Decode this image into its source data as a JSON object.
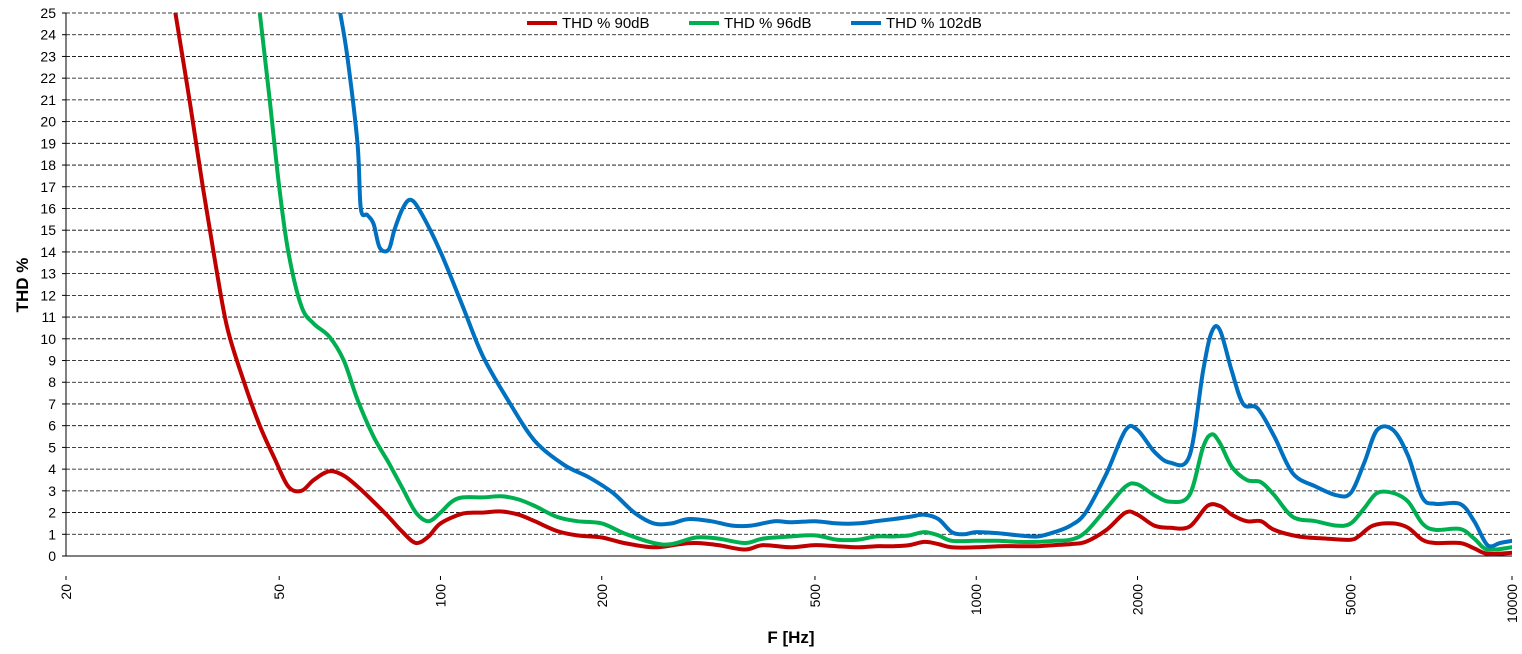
{
  "chart_data": {
    "type": "line",
    "title": "",
    "xlabel": "F [Hz]",
    "ylabel": "THD %",
    "x_scale": "log",
    "xlim": [
      20,
      10000
    ],
    "ylim": [
      0,
      25
    ],
    "x_ticks": [
      20,
      50,
      100,
      200,
      500,
      1000,
      2000,
      5000,
      10000
    ],
    "x_tick_labels": [
      "20",
      "50",
      "100",
      "200",
      "500",
      "1000",
      "2000",
      "5000",
      "10000"
    ],
    "y_ticks": [
      0,
      1,
      2,
      3,
      4,
      5,
      6,
      7,
      8,
      9,
      10,
      11,
      12,
      13,
      14,
      15,
      16,
      17,
      18,
      19,
      20,
      21,
      22,
      23,
      24,
      25
    ],
    "y_tick_labels": [
      "0",
      "1",
      "2",
      "3",
      "4",
      "5",
      "6",
      "7",
      "8",
      "9",
      "10",
      "11",
      "12",
      "13",
      "14",
      "15",
      "16",
      "17",
      "18",
      "19",
      "20",
      "21",
      "22",
      "23",
      "24",
      "25"
    ],
    "grid": "horizontal dashed",
    "legend_position": "top-center",
    "series": [
      {
        "name": "THD % 90dB",
        "color": "#c00000",
        "points": [
          [
            32,
            25
          ],
          [
            34,
            21
          ],
          [
            36,
            17
          ],
          [
            38,
            13.5
          ],
          [
            40,
            10.5
          ],
          [
            43,
            8
          ],
          [
            46,
            6
          ],
          [
            49,
            4.5
          ],
          [
            52,
            3.2
          ],
          [
            55,
            3.0
          ],
          [
            58,
            3.5
          ],
          [
            62,
            3.9
          ],
          [
            66,
            3.7
          ],
          [
            70,
            3.2
          ],
          [
            75,
            2.5
          ],
          [
            80,
            1.8
          ],
          [
            85,
            1.1
          ],
          [
            90,
            0.6
          ],
          [
            95,
            0.9
          ],
          [
            100,
            1.5
          ],
          [
            110,
            1.95
          ],
          [
            120,
            2.0
          ],
          [
            130,
            2.05
          ],
          [
            140,
            1.9
          ],
          [
            150,
            1.6
          ],
          [
            165,
            1.15
          ],
          [
            180,
            0.95
          ],
          [
            200,
            0.85
          ],
          [
            220,
            0.6
          ],
          [
            250,
            0.4
          ],
          [
            280,
            0.55
          ],
          [
            300,
            0.6
          ],
          [
            330,
            0.5
          ],
          [
            370,
            0.3
          ],
          [
            400,
            0.5
          ],
          [
            450,
            0.4
          ],
          [
            500,
            0.5
          ],
          [
            550,
            0.45
          ],
          [
            600,
            0.4
          ],
          [
            650,
            0.45
          ],
          [
            700,
            0.45
          ],
          [
            750,
            0.5
          ],
          [
            800,
            0.65
          ],
          [
            850,
            0.55
          ],
          [
            900,
            0.4
          ],
          [
            1000,
            0.4
          ],
          [
            1100,
            0.45
          ],
          [
            1200,
            0.45
          ],
          [
            1300,
            0.45
          ],
          [
            1400,
            0.5
          ],
          [
            1500,
            0.55
          ],
          [
            1600,
            0.65
          ],
          [
            1750,
            1.2
          ],
          [
            1900,
            2.0
          ],
          [
            2000,
            1.9
          ],
          [
            2150,
            1.4
          ],
          [
            2300,
            1.3
          ],
          [
            2500,
            1.35
          ],
          [
            2700,
            2.3
          ],
          [
            2850,
            2.3
          ],
          [
            3000,
            1.9
          ],
          [
            3200,
            1.6
          ],
          [
            3400,
            1.6
          ],
          [
            3600,
            1.2
          ],
          [
            4000,
            0.9
          ],
          [
            4500,
            0.8
          ],
          [
            5000,
            0.75
          ],
          [
            5200,
            0.95
          ],
          [
            5500,
            1.4
          ],
          [
            6000,
            1.5
          ],
          [
            6400,
            1.3
          ],
          [
            6800,
            0.75
          ],
          [
            7200,
            0.6
          ],
          [
            8000,
            0.6
          ],
          [
            8500,
            0.35
          ],
          [
            9000,
            0.1
          ],
          [
            10000,
            0.15
          ]
        ]
      },
      {
        "name": "THD % 96dB",
        "color": "#00b050",
        "points": [
          [
            46,
            25
          ],
          [
            48,
            21
          ],
          [
            50,
            17
          ],
          [
            52,
            14
          ],
          [
            55,
            11.5
          ],
          [
            58,
            10.7
          ],
          [
            62,
            10.1
          ],
          [
            66,
            9.0
          ],
          [
            70,
            7.2
          ],
          [
            75,
            5.5
          ],
          [
            80,
            4.3
          ],
          [
            85,
            3.1
          ],
          [
            90,
            2.0
          ],
          [
            95,
            1.6
          ],
          [
            100,
            2.0
          ],
          [
            105,
            2.5
          ],
          [
            110,
            2.7
          ],
          [
            120,
            2.7
          ],
          [
            130,
            2.75
          ],
          [
            140,
            2.6
          ],
          [
            150,
            2.3
          ],
          [
            165,
            1.8
          ],
          [
            180,
            1.6
          ],
          [
            200,
            1.5
          ],
          [
            220,
            1.05
          ],
          [
            250,
            0.6
          ],
          [
            270,
            0.55
          ],
          [
            300,
            0.85
          ],
          [
            330,
            0.8
          ],
          [
            370,
            0.6
          ],
          [
            400,
            0.8
          ],
          [
            450,
            0.9
          ],
          [
            500,
            0.95
          ],
          [
            550,
            0.75
          ],
          [
            600,
            0.75
          ],
          [
            650,
            0.9
          ],
          [
            700,
            0.9
          ],
          [
            750,
            0.95
          ],
          [
            800,
            1.1
          ],
          [
            850,
            0.95
          ],
          [
            900,
            0.7
          ],
          [
            1000,
            0.7
          ],
          [
            1100,
            0.7
          ],
          [
            1200,
            0.65
          ],
          [
            1300,
            0.65
          ],
          [
            1400,
            0.7
          ],
          [
            1500,
            0.75
          ],
          [
            1600,
            1.1
          ],
          [
            1750,
            2.2
          ],
          [
            1900,
            3.2
          ],
          [
            2000,
            3.3
          ],
          [
            2150,
            2.8
          ],
          [
            2300,
            2.5
          ],
          [
            2500,
            2.8
          ],
          [
            2650,
            5.0
          ],
          [
            2750,
            5.6
          ],
          [
            2850,
            5.2
          ],
          [
            3000,
            4.1
          ],
          [
            3200,
            3.5
          ],
          [
            3400,
            3.4
          ],
          [
            3600,
            2.8
          ],
          [
            3900,
            1.8
          ],
          [
            4300,
            1.6
          ],
          [
            4700,
            1.4
          ],
          [
            5000,
            1.5
          ],
          [
            5300,
            2.2
          ],
          [
            5600,
            2.9
          ],
          [
            6000,
            2.9
          ],
          [
            6400,
            2.5
          ],
          [
            6800,
            1.5
          ],
          [
            7200,
            1.2
          ],
          [
            8000,
            1.25
          ],
          [
            8500,
            0.8
          ],
          [
            9000,
            0.3
          ],
          [
            10000,
            0.4
          ]
        ]
      },
      {
        "name": "THD % 102dB",
        "color": "#0070c0",
        "points": [
          [
            65,
            25
          ],
          [
            67,
            23
          ],
          [
            70,
            19
          ],
          [
            71,
            16
          ],
          [
            73,
            15.7
          ],
          [
            75,
            15.3
          ],
          [
            77,
            14.2
          ],
          [
            80,
            14.1
          ],
          [
            82,
            15.0
          ],
          [
            85,
            16.0
          ],
          [
            88,
            16.4
          ],
          [
            92,
            15.8
          ],
          [
            100,
            14.0
          ],
          [
            110,
            11.5
          ],
          [
            120,
            9.2
          ],
          [
            135,
            7.0
          ],
          [
            150,
            5.3
          ],
          [
            170,
            4.2
          ],
          [
            190,
            3.6
          ],
          [
            210,
            2.9
          ],
          [
            230,
            2.0
          ],
          [
            250,
            1.5
          ],
          [
            270,
            1.5
          ],
          [
            290,
            1.7
          ],
          [
            320,
            1.6
          ],
          [
            350,
            1.4
          ],
          [
            380,
            1.4
          ],
          [
            420,
            1.6
          ],
          [
            450,
            1.55
          ],
          [
            500,
            1.6
          ],
          [
            550,
            1.5
          ],
          [
            600,
            1.5
          ],
          [
            650,
            1.6
          ],
          [
            700,
            1.7
          ],
          [
            750,
            1.8
          ],
          [
            800,
            1.9
          ],
          [
            850,
            1.7
          ],
          [
            900,
            1.1
          ],
          [
            950,
            1.0
          ],
          [
            1000,
            1.1
          ],
          [
            1100,
            1.05
          ],
          [
            1200,
            0.95
          ],
          [
            1300,
            0.9
          ],
          [
            1400,
            1.1
          ],
          [
            1500,
            1.4
          ],
          [
            1600,
            2.0
          ],
          [
            1750,
            3.8
          ],
          [
            1900,
            5.8
          ],
          [
            2000,
            5.8
          ],
          [
            2150,
            4.8
          ],
          [
            2300,
            4.3
          ],
          [
            2500,
            4.6
          ],
          [
            2650,
            8.5
          ],
          [
            2750,
            10.3
          ],
          [
            2850,
            10.4
          ],
          [
            3000,
            8.5
          ],
          [
            3150,
            7.0
          ],
          [
            3350,
            6.8
          ],
          [
            3600,
            5.5
          ],
          [
            3900,
            3.8
          ],
          [
            4300,
            3.2
          ],
          [
            4700,
            2.8
          ],
          [
            5000,
            2.9
          ],
          [
            5300,
            4.3
          ],
          [
            5600,
            5.8
          ],
          [
            6000,
            5.8
          ],
          [
            6400,
            4.6
          ],
          [
            6800,
            2.7
          ],
          [
            7200,
            2.4
          ],
          [
            8000,
            2.4
          ],
          [
            8500,
            1.6
          ],
          [
            9000,
            0.5
          ],
          [
            9500,
            0.6
          ],
          [
            10000,
            0.7
          ]
        ]
      }
    ]
  }
}
